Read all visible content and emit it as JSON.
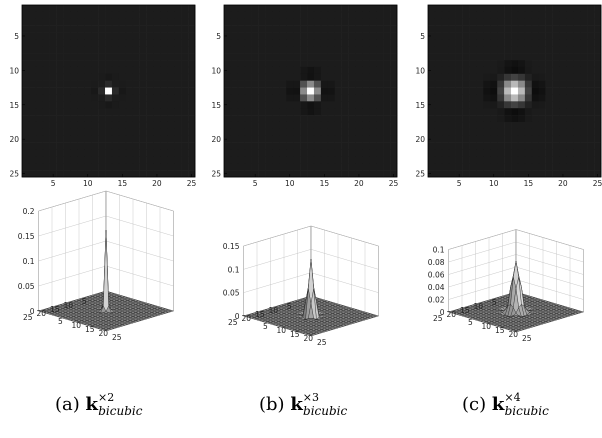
{
  "figure": {
    "panels": [
      {
        "id": "a",
        "scale": 2,
        "caption": {
          "prefix": "(a)",
          "symbol": "k",
          "superscript": "×2",
          "subscript": "bicubic"
        },
        "heatmap": {
          "x_ticks": [
            "5",
            "10",
            "15",
            "20",
            "25"
          ],
          "y_ticks": [
            "5",
            "10",
            "15",
            "20",
            "25"
          ],
          "width": 25
        },
        "surface": {
          "z_ticks": [
            "0",
            "0.05",
            "0.1",
            "0.15",
            "0.2"
          ],
          "z_max": 0.2,
          "row_ticks": [
            "5",
            "10",
            "15",
            "20",
            "25"
          ],
          "col_ticks": [
            "5",
            "10",
            "15",
            "20",
            "25"
          ]
        }
      },
      {
        "id": "b",
        "scale": 3,
        "caption": {
          "prefix": "(b)",
          "symbol": "k",
          "superscript": "×3",
          "subscript": "bicubic"
        },
        "heatmap": {
          "x_ticks": [
            "5",
            "10",
            "15",
            "20",
            "25"
          ],
          "y_ticks": [
            "5",
            "10",
            "15",
            "20",
            "25"
          ],
          "width": 25
        },
        "surface": {
          "z_ticks": [
            "0",
            "0.05",
            "0.1",
            "0.15"
          ],
          "z_max": 0.15,
          "row_ticks": [
            "5",
            "10",
            "15",
            "20",
            "25"
          ],
          "col_ticks": [
            "5",
            "10",
            "15",
            "20",
            "25"
          ]
        }
      },
      {
        "id": "c",
        "scale": 4,
        "caption": {
          "prefix": "(c)",
          "symbol": "k",
          "superscript": "×4",
          "subscript": "bicubic"
        },
        "heatmap": {
          "x_ticks": [
            "5",
            "10",
            "15",
            "20",
            "25"
          ],
          "y_ticks": [
            "5",
            "10",
            "15",
            "20",
            "25"
          ],
          "width": 25
        },
        "surface": {
          "z_ticks": [
            "0",
            "0.02",
            "0.04",
            "0.06",
            "0.08",
            "0.1"
          ],
          "z_max": 0.1,
          "row_ticks": [
            "5",
            "10",
            "15",
            "20",
            "25"
          ],
          "col_ticks": [
            "5",
            "10",
            "15",
            "20",
            "25"
          ]
        }
      }
    ]
  }
}
